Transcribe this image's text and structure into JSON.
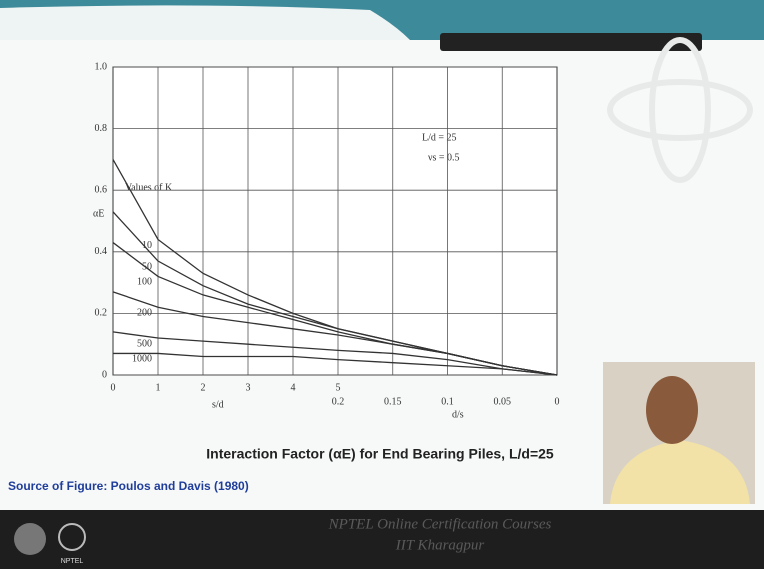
{
  "chart_data": {
    "type": "line",
    "ylabel": "αE",
    "xlabel": "s/d",
    "x2label": "d/s",
    "categories": [
      "0",
      "1",
      "2",
      "3",
      "4",
      "5",
      null,
      null,
      null,
      null
    ],
    "categories2": [
      null,
      null,
      null,
      null,
      null,
      "0.2",
      "0.15",
      "0.1",
      "0.05",
      "0"
    ],
    "ylim": [
      0,
      1
    ],
    "yticks": [
      0,
      0.2,
      0.4,
      0.6,
      0.8,
      {
        "value": 1,
        "label": "1.0"
      }
    ],
    "grid": true,
    "legend_title": "Values of K",
    "annotations": [
      "L/d = 25",
      "νs = 0.5"
    ],
    "series": [
      {
        "name": "10",
        "color": "#333333",
        "values": [
          0.7,
          0.44,
          0.33,
          0.26,
          0.2,
          0.15,
          0.11,
          0.07,
          0.03,
          0
        ]
      },
      {
        "name": "50",
        "color": "#333333",
        "values": [
          0.53,
          0.37,
          0.29,
          0.23,
          0.19,
          0.15,
          0.11,
          0.07,
          0.03,
          0
        ]
      },
      {
        "name": "100",
        "color": "#333333",
        "values": [
          0.43,
          0.32,
          0.26,
          0.22,
          0.18,
          0.14,
          0.1,
          0.07,
          0.03,
          0
        ]
      },
      {
        "name": "200",
        "color": "#333333",
        "values": [
          0.27,
          0.22,
          0.19,
          0.17,
          0.15,
          0.13,
          0.1,
          0.07,
          0.03,
          0
        ]
      },
      {
        "name": "500",
        "color": "#333333",
        "values": [
          0.14,
          0.12,
          0.11,
          0.1,
          0.09,
          0.08,
          0.07,
          0.05,
          0.02,
          0
        ]
      },
      {
        "name": "1000",
        "color": "#333333",
        "values": [
          0.07,
          0.07,
          0.06,
          0.06,
          0.06,
          0.05,
          0.04,
          0.03,
          0.02,
          0
        ]
      }
    ]
  },
  "caption": "Interaction Factor (αE) for End Bearing Piles, L/d=25",
  "source": "Source of Figure: Poulos and Davis (1980)",
  "footer": {
    "line1": "NPTEL Online Certification Courses",
    "line2": "IIT Kharagpur",
    "logo": "NPTEL"
  }
}
